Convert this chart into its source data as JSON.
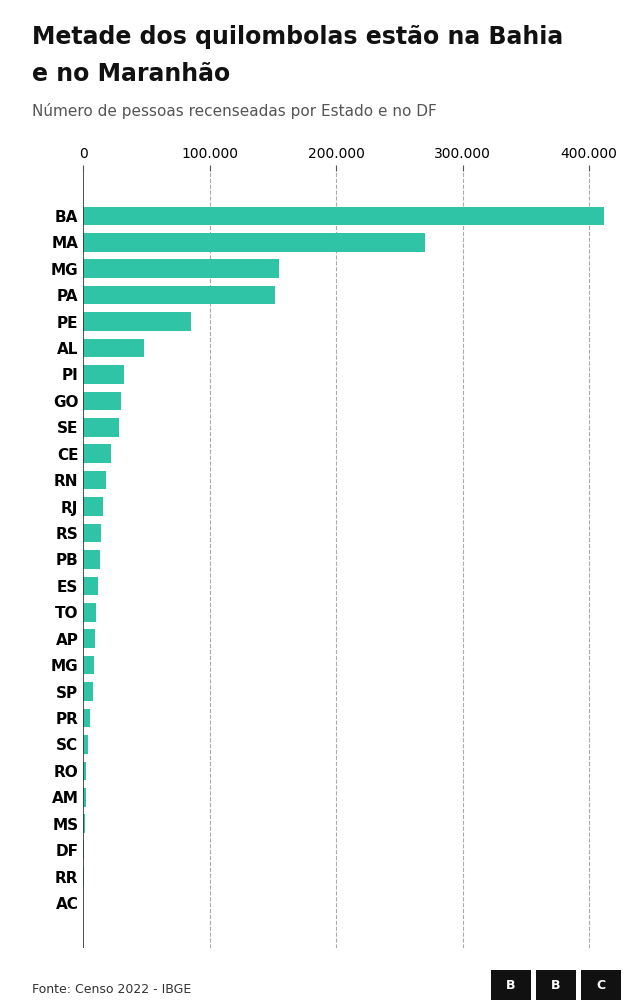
{
  "title_line1": "Metade dos quilombolas estão na Bahia",
  "title_line2": "e no Maranhão",
  "subtitle": "Número de pessoas recenseadas por Estado e no DF",
  "source": "Fonte: Censo 2022 - IBGE",
  "bar_color": "#2ec4a5",
  "background_color": "#ffffff",
  "xlim": [
    0,
    420000
  ],
  "xticks": [
    0,
    100000,
    200000,
    300000,
    400000
  ],
  "xtick_labels": [
    "0",
    "100.000",
    "200.000",
    "300.000",
    "400.000"
  ],
  "categories": [
    "BA",
    "MA",
    "MG",
    "PA",
    "PE",
    "AL",
    "PI",
    "GO",
    "SE",
    "CE",
    "RN",
    "RJ",
    "RS",
    "PB",
    "ES",
    "TO",
    "AP",
    "MG",
    "SP",
    "PR",
    "SC",
    "RO",
    "AM",
    "MS",
    "DF",
    "RR",
    "AC"
  ],
  "values": [
    412000,
    270000,
    155000,
    152000,
    85000,
    48000,
    32000,
    30000,
    28000,
    22000,
    18000,
    16000,
    14000,
    13000,
    12000,
    10500,
    9500,
    8500,
    7500,
    5000,
    4000,
    2500,
    2000,
    1500,
    500,
    300,
    100
  ]
}
